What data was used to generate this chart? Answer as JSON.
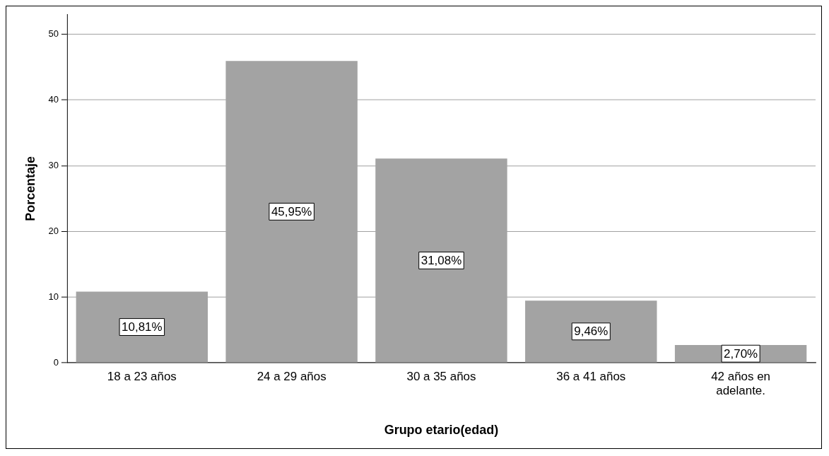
{
  "chart_data": {
    "type": "bar",
    "xlabel": "Grupo etario(edad)",
    "ylabel": "Porcentaje",
    "categories": [
      "18 a 23 años",
      "24 a 29 años",
      "30 a 35 años",
      "36 a 41 años",
      "42 años en adelante."
    ],
    "values": [
      10.81,
      45.95,
      31.08,
      9.46,
      2.7
    ],
    "value_labels": [
      "10,81%",
      "45,95%",
      "31,08%",
      "9,46%",
      "2,70%"
    ],
    "color": "#a3a3a3",
    "ylim": [
      0,
      53
    ],
    "yticks": [
      0,
      10,
      20,
      30,
      40,
      50
    ],
    "grid": "y",
    "legend": false
  }
}
